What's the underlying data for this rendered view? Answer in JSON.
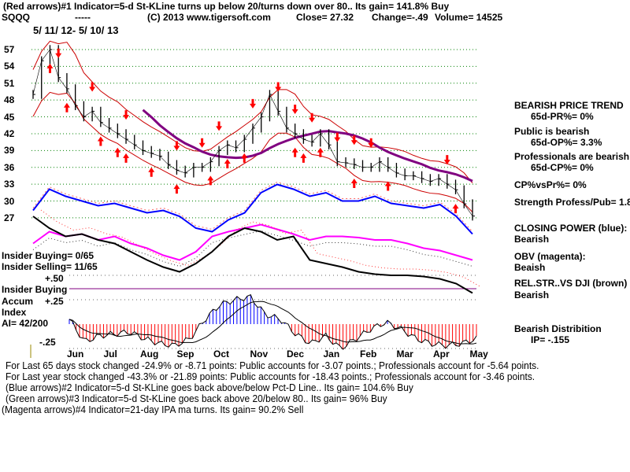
{
  "header": {
    "line1": "(Red arrows)#1 Indicator=5-d St-KLine turns up below 20/turns down over 80.. Its gain= 141.8% Buy",
    "symbol": "SQQQ",
    "dashes": "-----",
    "copyright": "(C) 2013 www.tigersoft.com",
    "close": "Close=  27.32",
    "change": "Change=-.49",
    "volume": "Volume=  14525",
    "date_range": "5/ 11/ 12- 5/ 10/ 13"
  },
  "right_panel": {
    "price_trend": "BEARISH PRICE TREND",
    "pr": "65d-PR%= 0%",
    "public": "Public is bearish",
    "op": "65d-OP%= 3.3%",
    "professionals": "Professionals are bearish",
    "cp": "65d-CP%= 0%",
    "cpvspr": "CP%vsPr%=  0%",
    "strength": "Strength Profess/Pub= 1.8",
    "closing_power": "CLOSING POWER (blue):",
    "closing_power_state": "Bearish",
    "obv": "OBV (magenta):",
    "obv_state": "Beaish",
    "relstr": "REL.STR..VS DJI (brown)",
    "relstr_state": "Bearish",
    "distribution": "Bearish Distribition",
    "ip": "IP= -.155"
  },
  "left_labels": {
    "insider_buying": "Insider Buying= 0/65",
    "insider_selling": "Insider Selling= 11/65",
    "plus50": "+.50",
    "insider_line": "Insider Buying",
    "accum": "Accum",
    "index": "Index",
    "ai": "AI= 42/200",
    "plus25": "+.25",
    "minus25": "-.25"
  },
  "footer": [
    "For Last 65 days stock changed -24.9% or -8.71 points:  Public accounts for -3.07 points.;  Professionals account for -5.64 points.",
    "For Last year stock changed -43.3% or -21.89 points:  Public accounts for -18.43 points.;  Professionals account for -3.46 points.",
    "(Blue arrows)#2 Indicator=5-d St-KLine goes back above/below Pct-D Line.. Its gain= 104.6% Buy",
    "(Green arrows)#3 Indicator=5-d St-KLine goes back above 20/below 80.. Its gain= 96% Buy",
    "(Magenta arrows)#4 Indicator=21-day IPA ma turns. Its gain= 90.2% Sell"
  ],
  "colors": {
    "price": "#000000",
    "ma65": "#800080",
    "bands": "#cc0000",
    "closing_power": "#0000ff",
    "obv": "#ff00ff",
    "relstr": "#000000",
    "grid": "#008000",
    "accum_pos": "#0000ff",
    "accum_neg": "#ff0000",
    "arrow": "#ff0000"
  },
  "chart_data": {
    "type": "line",
    "title": "SQQQ 5/11/12 - 5/10/13",
    "price_ticks": [
      57,
      54,
      51,
      48,
      45,
      42,
      39,
      36,
      33,
      30,
      27
    ],
    "price_range": [
      26,
      59
    ],
    "months": [
      "Jun",
      "Jul",
      "Aug",
      "Sep",
      "Oct",
      "Nov",
      "Dec",
      "Jan",
      "Feb",
      "Mar",
      "Apr",
      "May"
    ],
    "weekly_close": [
      49,
      55,
      57,
      52,
      50,
      47,
      45,
      46,
      44,
      43,
      42,
      41,
      40,
      39,
      38.5,
      38,
      36.5,
      35.5,
      35,
      36,
      36,
      37,
      39,
      40,
      39.5,
      41,
      43,
      45,
      49,
      46,
      43,
      42,
      41,
      40.5,
      42,
      40,
      37,
      36.8,
      36.5,
      36,
      36,
      37,
      36,
      35,
      34.5,
      34.5,
      34,
      33.5,
      34,
      33,
      32,
      29.5,
      27.32
    ],
    "buy_arrow_weeks": [
      2,
      4,
      8,
      10,
      11,
      14,
      17,
      21,
      23,
      25,
      31,
      32,
      34,
      38,
      42,
      50
    ],
    "sell_arrow_weeks": [
      3,
      7,
      11,
      17,
      20,
      22,
      26,
      29,
      31,
      33,
      36,
      38,
      40,
      49
    ],
    "closing_power": [
      75,
      93,
      87,
      83,
      79,
      81,
      77,
      73,
      75,
      70,
      60,
      57,
      67,
      73,
      90,
      97,
      93,
      87,
      90,
      83,
      83,
      87,
      81,
      79,
      77,
      80,
      70,
      55
    ],
    "obv": [
      47,
      57,
      53,
      55,
      50,
      53,
      47,
      43,
      37,
      33,
      40,
      53,
      57,
      60,
      63,
      59,
      55,
      50,
      53,
      53,
      52,
      50,
      50,
      47,
      43,
      41,
      37,
      33
    ],
    "relative_strength": [
      70,
      60,
      53,
      55,
      50,
      47,
      40,
      33,
      27,
      23,
      30,
      40,
      53,
      60,
      57,
      50,
      53,
      33,
      30,
      27,
      23,
      21,
      20,
      20,
      19,
      17,
      13,
      5
    ],
    "accum_index": [
      0.05,
      -0.18,
      -0.12,
      -0.1,
      -0.08,
      -0.15,
      -0.2,
      -0.22,
      -0.15,
      0.05,
      0.2,
      0.25,
      0.28,
      0.1,
      0.05,
      -0.1,
      -0.2,
      -0.12,
      -0.25,
      -0.15,
      -0.05,
      0.02,
      -0.05,
      -0.15,
      -0.2,
      -0.22,
      -0.2,
      -0.15
    ],
    "accum_ticks": [
      0.5,
      0.25,
      -0.25
    ]
  }
}
